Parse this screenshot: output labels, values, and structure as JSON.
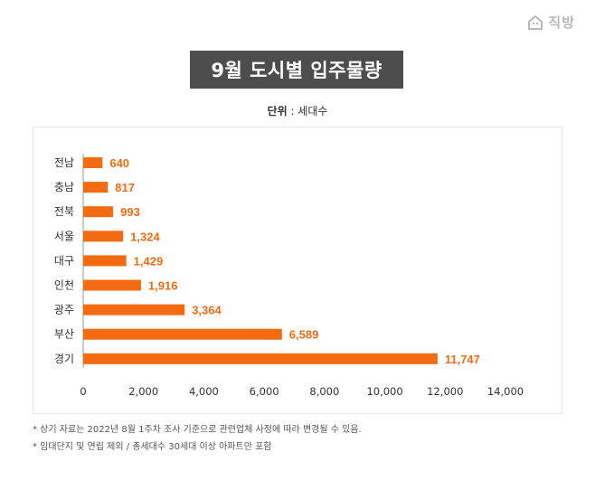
{
  "logo": {
    "text": "직방",
    "icon": "house-icon"
  },
  "title": "9월 도시별 입주물량",
  "unit": {
    "label": "단위",
    "separator": " : ",
    "value": "세대수"
  },
  "notes": [
    "* 상기 자료는 2022년 8월 1주차 조사 기준으로 관련업체 사정에 따라 변경될 수 있음.",
    "* 임대단지 및 연립 제외 / 총세대수 30세대 이상 아파트만 포함"
  ],
  "colors": {
    "bar": "#f26b10",
    "label": "#f26b10",
    "title_bg": "#4d4d4d"
  },
  "chart_data": {
    "type": "bar",
    "orientation": "horizontal",
    "categories": [
      "전남",
      "충남",
      "전북",
      "서울",
      "대구",
      "인천",
      "광주",
      "부산",
      "경기"
    ],
    "values": [
      640,
      817,
      993,
      1324,
      1429,
      1916,
      3364,
      6589,
      11747
    ],
    "value_labels": [
      "640",
      "817",
      "993",
      "1,324",
      "1,429",
      "1,916",
      "3,364",
      "6,589",
      "11,747"
    ],
    "xlim": [
      0,
      14000
    ],
    "xticks": [
      "0",
      "2,000",
      "4,000",
      "6,000",
      "8,000",
      "10,000",
      "12,000",
      "14,000"
    ],
    "grid": false
  }
}
